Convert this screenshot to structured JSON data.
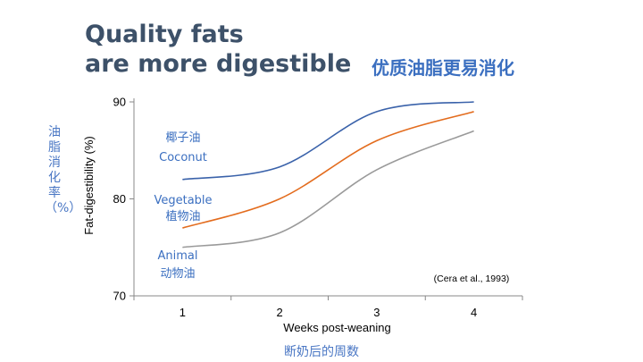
{
  "title_line1": "Quality fats",
  "title_line2": "are more digestible",
  "title_cn": "优质油脂更易消化",
  "ylabel_cn": "油脂消化率（%）",
  "xlabel_cn": "断奶后的周数",
  "citation": "(Cera et al., 1993)",
  "colors": {
    "coconut": "#3a62aa",
    "vegetable": "#e36c1e",
    "animal": "#9a9a9a",
    "label": "#3b6fc0"
  },
  "chart_data": {
    "type": "line",
    "xlabel": "Weeks post-weaning",
    "ylabel": "Fat-digestibility (%)",
    "xlim": [
      0.5,
      4.5
    ],
    "ylim": [
      70,
      90
    ],
    "x_ticks": [
      "1",
      "2",
      "3",
      "4"
    ],
    "y_ticks": [
      "70",
      "80",
      "90"
    ],
    "x": [
      1,
      2,
      3,
      4
    ],
    "series": [
      {
        "key": "coconut",
        "label_en": "Coconut",
        "label_cn": "椰子油",
        "values": [
          82,
          83.3,
          89,
          90
        ]
      },
      {
        "key": "vegetable",
        "label_en": "Vegetable",
        "label_cn": "植物油",
        "values": [
          77,
          80,
          86,
          89
        ]
      },
      {
        "key": "animal",
        "label_en": "Animal",
        "label_cn": "动物油",
        "values": [
          75,
          76.5,
          83,
          87
        ]
      }
    ]
  }
}
